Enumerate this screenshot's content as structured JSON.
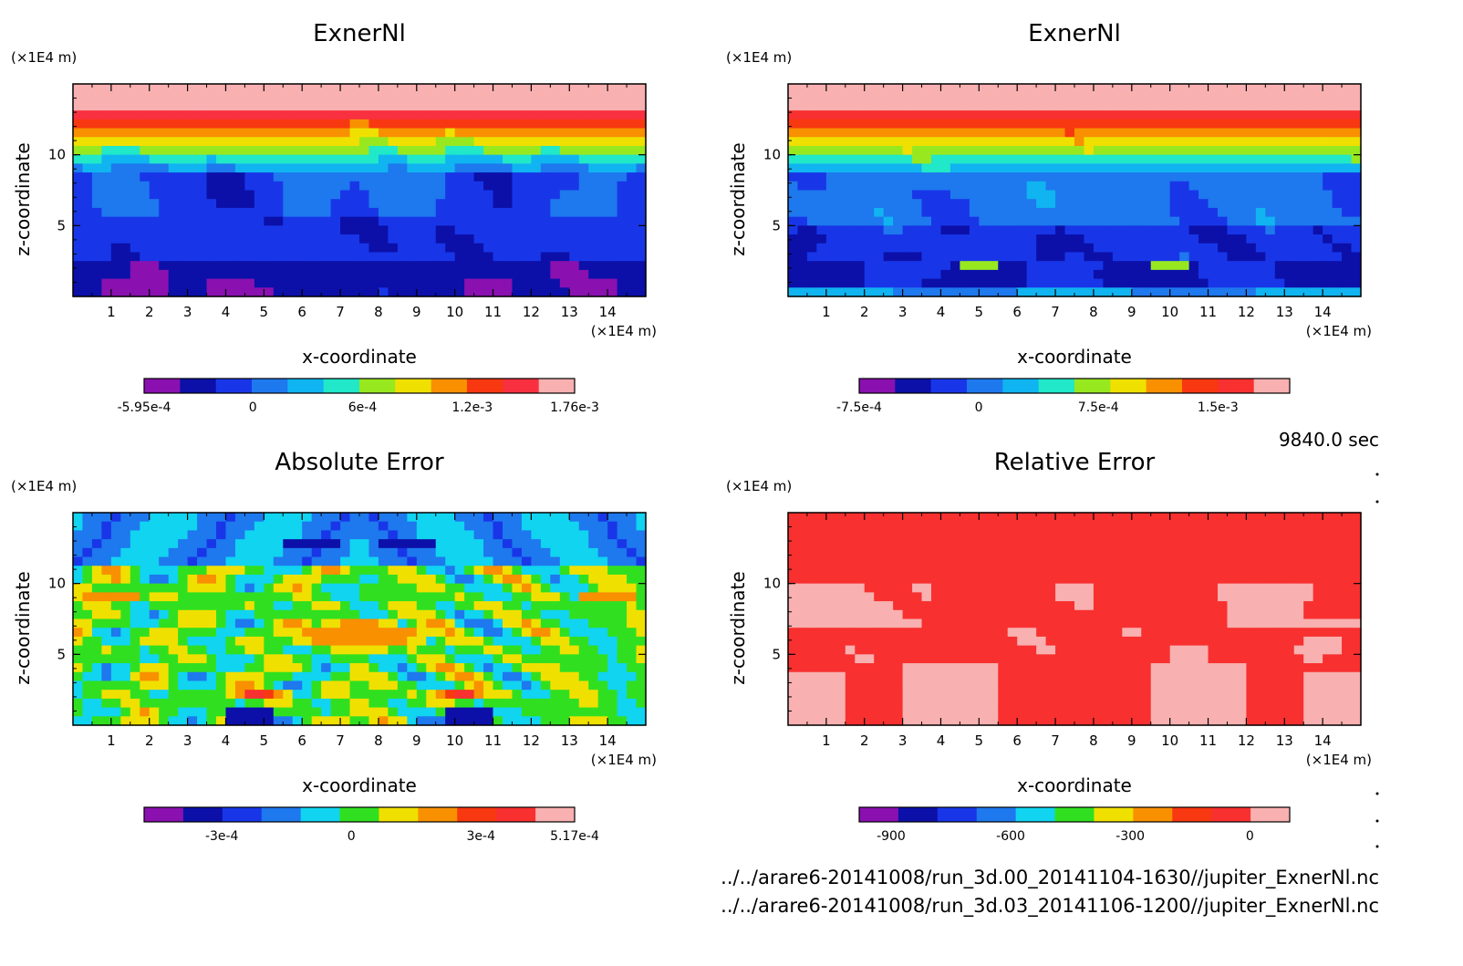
{
  "chart_data": [
    {
      "type": "heatmap",
      "title": "ExnerNl",
      "xlabel": "x-coordinate",
      "ylabel": "z-coordinate",
      "x_unit": "(×1E4 m)",
      "y_unit": "(×1E4 m)",
      "xlim": [
        0,
        15
      ],
      "ylim": [
        0,
        15
      ],
      "x_ticks": [
        "1",
        "2",
        "3",
        "4",
        "5",
        "6",
        "7",
        "8",
        "9",
        "10",
        "11",
        "12",
        "13",
        "14"
      ],
      "y_ticks": [
        "5",
        "10"
      ],
      "colorbar": {
        "min": -0.000595,
        "max": 0.00176,
        "tick_values": [
          -0.000595,
          0,
          0.0006,
          0.0012,
          0.00176
        ],
        "tick_labels": [
          "-5.95e-4",
          "0",
          "6e-4",
          "1.2e-3",
          "1.76e-3"
        ],
        "colors": [
          "#8a10b0",
          "#0c10a8",
          "#1836e8",
          "#1e78ee",
          "#10b4f0",
          "#20e8c8",
          "#98e820",
          "#f0e000",
          "#f89000",
          "#f83810",
          "#f83040",
          "#f8b0b0"
        ]
      },
      "pattern": "horizontal-layers"
    },
    {
      "type": "heatmap",
      "title": "ExnerNl",
      "xlabel": "x-coordinate",
      "ylabel": "z-coordinate",
      "x_unit": "(×1E4 m)",
      "y_unit": "(×1E4 m)",
      "xlim": [
        0,
        15
      ],
      "ylim": [
        0,
        15
      ],
      "x_ticks": [
        "1",
        "2",
        "3",
        "4",
        "5",
        "6",
        "7",
        "8",
        "9",
        "10",
        "11",
        "12",
        "13",
        "14"
      ],
      "y_ticks": [
        "5",
        "10"
      ],
      "colorbar": {
        "min": -0.00075,
        "max": 0.00195,
        "tick_values": [
          -0.00075,
          0,
          0.00075,
          0.0015
        ],
        "tick_labels": [
          "-7.5e-4",
          "0",
          "7.5e-4",
          "1.5e-3"
        ],
        "colors": [
          "#8a10b0",
          "#0c10a8",
          "#1836e8",
          "#1e78ee",
          "#10b4f0",
          "#20e8c8",
          "#98e820",
          "#f0e000",
          "#f89000",
          "#f83810",
          "#f83030",
          "#f8b0b0"
        ]
      },
      "pattern": "horizontal-layers"
    },
    {
      "type": "heatmap",
      "title": "Absolute Error",
      "xlabel": "x-coordinate",
      "ylabel": "z-coordinate",
      "x_unit": "(×1E4 m)",
      "y_unit": "(×1E4 m)",
      "xlim": [
        0,
        15
      ],
      "ylim": [
        0,
        15
      ],
      "x_ticks": [
        "1",
        "2",
        "3",
        "4",
        "5",
        "6",
        "7",
        "8",
        "9",
        "10",
        "11",
        "12",
        "13",
        "14"
      ],
      "y_ticks": [
        "5",
        "10"
      ],
      "colorbar": {
        "min": -0.00048,
        "max": 0.000517,
        "tick_values": [
          -0.0003,
          0,
          0.0003,
          0.000517
        ],
        "tick_labels": [
          "-3e-4",
          "0",
          "3e-4",
          "5.17e-4"
        ],
        "colors": [
          "#8a10b0",
          "#0c10a8",
          "#1836e8",
          "#1e78ee",
          "#10d4f0",
          "#30e020",
          "#f0e000",
          "#f89000",
          "#f83810",
          "#f83030",
          "#f8b0b0"
        ]
      },
      "pattern": "blobs"
    },
    {
      "type": "heatmap",
      "title": "Relative Error",
      "xlabel": "x-coordinate",
      "ylabel": "z-coordinate",
      "x_unit": "(×1E4 m)",
      "y_unit": "(×1E4 m)",
      "xlim": [
        0,
        15
      ],
      "ylim": [
        0,
        15
      ],
      "x_ticks": [
        "1",
        "2",
        "3",
        "4",
        "5",
        "6",
        "7",
        "8",
        "9",
        "10",
        "11",
        "12",
        "13",
        "14"
      ],
      "y_ticks": [
        "5",
        "10"
      ],
      "colorbar": {
        "min": -980,
        "max": 100,
        "tick_values": [
          -900,
          -600,
          -300,
          0
        ],
        "tick_labels": [
          "-900",
          "-600",
          "-300",
          "0"
        ],
        "colors": [
          "#8a10b0",
          "#0c10a8",
          "#1836e8",
          "#1e78ee",
          "#10d4f0",
          "#30e020",
          "#f0e000",
          "#f89000",
          "#f83810",
          "#f83030",
          "#f8b0b0"
        ]
      },
      "pattern": "two-tone"
    }
  ],
  "time_label": "9840.0 sec",
  "files": [
    "../../arare6-20141008/run_3d.00_20141104-1630//jupiter_ExnerNl.nc",
    "../../arare6-20141008/run_3d.03_20141106-1200//jupiter_ExnerNl.nc"
  ]
}
